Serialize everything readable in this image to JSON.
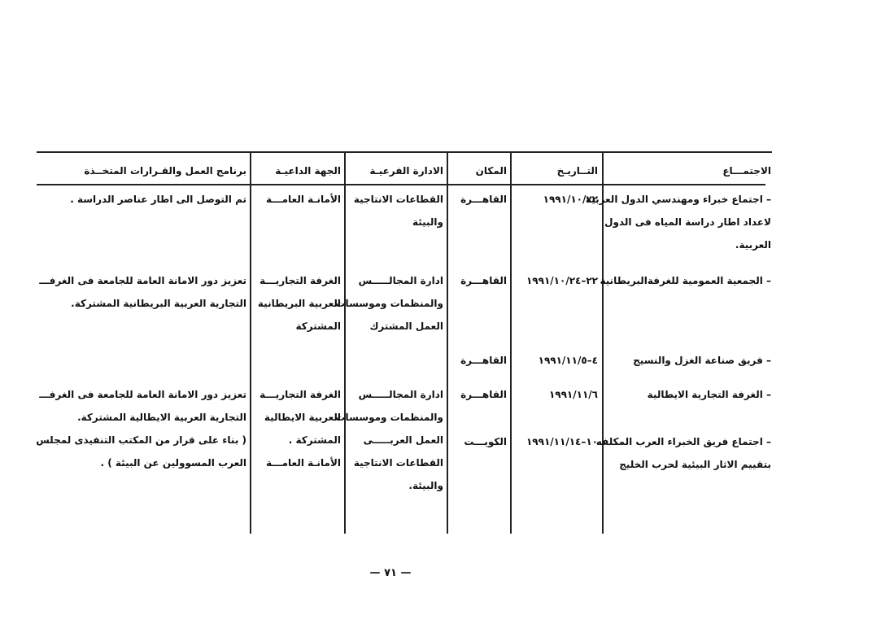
{
  "table": {
    "headers": [
      "الاجتمـــاع",
      "التــاريـخ",
      "المكان",
      "الادارة الفرعيـة",
      "الجهة الداعيـة",
      "برنامج العمل والقـرارات المتخــذة"
    ],
    "rows": [
      {
        "meeting": [
          "– اجتماع خبراء ومهندسي الدول العربية",
          "لاعداد اطار دراسة المياه فى الدول",
          "العربية."
        ],
        "date": [
          "١٩٩١/١٠/٢٢"
        ],
        "place": [
          "القاهـــرة"
        ],
        "admin": [
          "القطاعات الانتاجية",
          "والبيئة"
        ],
        "agency": [
          "الأمانـة العامـــة"
        ],
        "program": [
          "تم التوصل الى اطار عناصر الدراسة ."
        ]
      },
      {
        "meeting": [
          "– الجمعية العمومية للغرفةالبريطانية"
        ],
        "date": [
          "٢٢–١٩٩١/١٠/٢٤"
        ],
        "place": [
          "القاهـــرة"
        ],
        "admin": [
          "ادارة المجالـــــس",
          "والمنظمات وموسسات",
          "العمل المشترك"
        ],
        "agency": [
          "الغرفة التجاريـــة",
          "العربية البريطانية",
          "المشتركة"
        ],
        "program": [
          "تعزيز دور الامانة العامة للجامعة فى الغرفـــ",
          "التجارية العربية البريطانية المشتركة."
        ]
      },
      {
        "meeting": [
          "– فريق صناعة الغزل والنسيج"
        ],
        "date": [
          "٤–١٩٩١/١١/٥"
        ],
        "place": [
          "القاهـــرة"
        ],
        "admin": [],
        "agency": [],
        "program": []
      },
      {
        "meeting": [
          "– الغرفة التجارية الايطالية"
        ],
        "date": [
          "١٩٩١/١١/٦"
        ],
        "place": [
          "القاهـــرة"
        ],
        "admin": [
          "ادارة المجالـــــس",
          "والمنظمات وموسسات",
          "العمل العربـــــى",
          "القطاعات الانتاجية",
          "والبيئة."
        ],
        "agency": [
          "الغرفة التجاريـــة",
          "العربية الايطالية",
          "المشتركة .",
          "الأمانـة العامـــة"
        ],
        "program": [
          "تعزيز دور الامانة العامة للجامعة فى الغرفـــ",
          "التجارية العربية الايطالية المشتركة.",
          "( بناء على قرار من المكتب التنفيذى لمجلس",
          "العرب المسوولين عن البيئة ) ."
        ]
      },
      {
        "meeting": [
          "– اجتماع فريق الخبراء العرب المكلفه",
          "بتقييم الاثار البيئية لحرب الخليج"
        ],
        "date": [
          "١٠–١٩٩١/١١/١٤"
        ],
        "place": [
          "الكويـــت"
        ],
        "admin": [],
        "agency": [],
        "program": []
      }
    ]
  },
  "page_number": "— ٧١ —"
}
